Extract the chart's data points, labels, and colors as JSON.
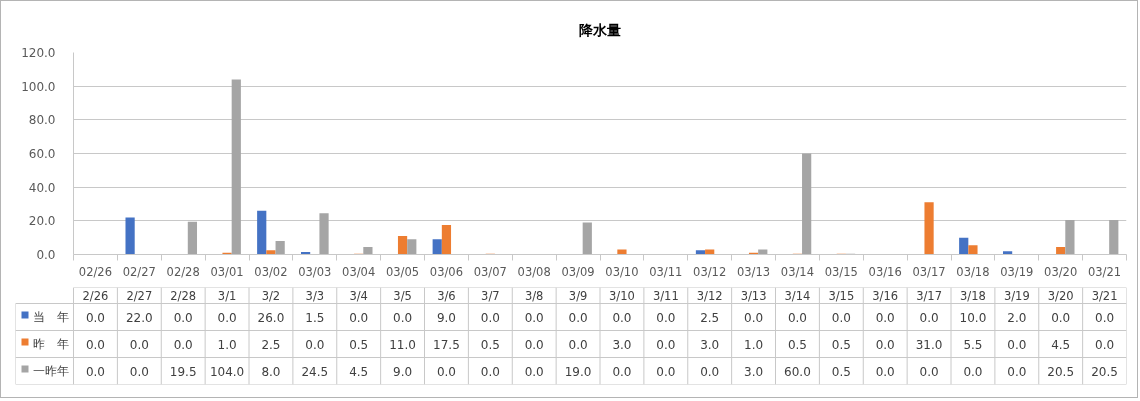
{
  "chart_data": {
    "type": "bar",
    "title": "降水量",
    "categories": [
      "02/26",
      "02/27",
      "02/28",
      "03/01",
      "03/02",
      "03/03",
      "03/04",
      "03/05",
      "03/06",
      "03/07",
      "03/08",
      "03/09",
      "03/10",
      "03/11",
      "03/12",
      "03/13",
      "03/14",
      "03/15",
      "03/16",
      "03/17",
      "03/18",
      "03/19",
      "03/20",
      "03/21"
    ],
    "series": [
      {
        "name": "当　年",
        "color": "#4472c4",
        "values": [
          0,
          22,
          0,
          0,
          26,
          1.5,
          0,
          0,
          9,
          0,
          0,
          0,
          0,
          0,
          2.5,
          0,
          0,
          0,
          0,
          0,
          10,
          2,
          0,
          0
        ],
        "value_labels": [
          "0.0",
          "22.0",
          "0.0",
          "0.0",
          "26.0",
          "1.5",
          "0.0",
          "0.0",
          "9.0",
          "0.0",
          "0.0",
          "0.0",
          "0.0",
          "0.0",
          "2.5",
          "0.0",
          "0.0",
          "0.0",
          "0.0",
          "0.0",
          "10.0",
          "2.0",
          "0.0",
          "0.0"
        ]
      },
      {
        "name": "昨　年",
        "color": "#ed7d31",
        "values": [
          0,
          0,
          0,
          1,
          2.5,
          0,
          0.5,
          11,
          17.5,
          0.5,
          0,
          0,
          3,
          0,
          3,
          1,
          0.5,
          0.5,
          0,
          31,
          5.5,
          0,
          4.5,
          0
        ],
        "value_labels": [
          "0.0",
          "0.0",
          "0.0",
          "1.0",
          "2.5",
          "0.0",
          "0.5",
          "11.0",
          "17.5",
          "0.5",
          "0.0",
          "0.0",
          "3.0",
          "0.0",
          "3.0",
          "1.0",
          "0.5",
          "0.5",
          "0.0",
          "31.0",
          "5.5",
          "0.0",
          "4.5",
          "0.0"
        ]
      },
      {
        "name": "一昨年",
        "color": "#a5a5a5",
        "values": [
          0,
          0,
          19.5,
          104,
          8,
          24.5,
          4.5,
          9,
          0,
          0,
          0,
          19,
          0,
          0,
          0,
          3,
          60,
          0.5,
          0,
          0,
          0,
          0,
          20.5,
          20.5
        ],
        "value_labels": [
          "0.0",
          "0.0",
          "19.5",
          "104.0",
          "8.0",
          "24.5",
          "4.5",
          "9.0",
          "0.0",
          "0.0",
          "0.0",
          "19.0",
          "0.0",
          "0.0",
          "0.0",
          "3.0",
          "60.0",
          "0.5",
          "0.0",
          "0.0",
          "0.0",
          "0.0",
          "20.5",
          "20.5"
        ]
      }
    ],
    "ylim": [
      0,
      120
    ],
    "yticks": [
      {
        "value": 0,
        "label": "0.0"
      },
      {
        "value": 20,
        "label": "20.0"
      },
      {
        "value": 40,
        "label": "40.0"
      },
      {
        "value": 60,
        "label": "60.0"
      },
      {
        "value": 80,
        "label": "80.0"
      },
      {
        "value": 100,
        "label": "100.0"
      },
      {
        "value": 120,
        "label": "120.0"
      }
    ],
    "grid": "y",
    "legend": "bottom",
    "annotations": [
      "2/26",
      "2/27",
      "2/28",
      "3/1",
      "3/2",
      "3/3",
      "3/4",
      "3/5",
      "3/6",
      "3/7",
      "3/8",
      "3/9",
      "3/10",
      "3/11",
      "3/12",
      "3/13",
      "3/14",
      "3/15",
      "3/16",
      "3/17",
      "3/18",
      "3/19",
      "3/20",
      "3/21"
    ]
  }
}
